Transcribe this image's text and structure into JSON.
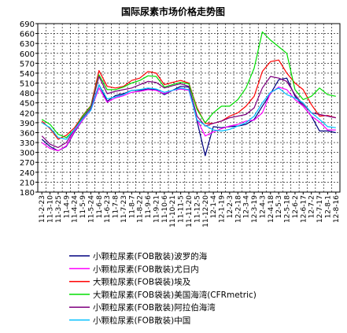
{
  "chart_data": {
    "type": "line",
    "title": "国际尿素市场价格走势图",
    "xlabel": "",
    "ylabel": "",
    "ylim": [
      180,
      690
    ],
    "yticks": [
      180,
      210,
      240,
      270,
      300,
      330,
      360,
      390,
      420,
      450,
      480,
      510,
      540,
      570,
      600,
      630,
      660,
      690
    ],
    "grid": true,
    "legend_position": "bottom",
    "x": [
      "11-2-23",
      "11-3-10",
      "11-3-25",
      "11-4-9",
      "11-4-24",
      "11-5-9",
      "11-5-24",
      "11-6-8",
      "11-6-23",
      "11-7-8",
      "11-7-23",
      "11-8-7",
      "11-8-22",
      "11-9-6",
      "11-9-21",
      "11-10-6",
      "11-10-21",
      "11-11-5",
      "11-11-20",
      "11-12-5",
      "11-12-20",
      "12-1-4",
      "12-1-19",
      "12-2-3",
      "12-2-18",
      "12-3-4",
      "12-3-19",
      "12-4-3",
      "12-4-18",
      "12-5-3",
      "12-5-18",
      "12-6-2",
      "12-6-17",
      "12-7-2",
      "12-7-17",
      "12-8-1",
      "12-8-16"
    ],
    "series": [
      {
        "name": "小颗粒尿素(FOB散装)波罗的海",
        "color": "#000080",
        "values": [
          340,
          318,
          305,
          318,
          362,
          398,
          430,
          505,
          455,
          472,
          478,
          488,
          488,
          492,
          490,
          475,
          488,
          500,
          498,
          395,
          290,
          378,
          375,
          378,
          380,
          385,
          400,
          440,
          478,
          520,
          525,
          470,
          440,
          410,
          365,
          365,
          360
        ]
      },
      {
        "name": "小颗粒尿素(FOB散装)尤日内",
        "color": "#ff00ff",
        "values": [
          330,
          312,
          305,
          320,
          365,
          398,
          428,
          495,
          452,
          465,
          472,
          482,
          485,
          490,
          488,
          478,
          488,
          492,
          488,
          400,
          350,
          362,
          372,
          380,
          385,
          395,
          398,
          420,
          480,
          498,
          490,
          460,
          440,
          410,
          392,
          368,
          368
        ]
      },
      {
        "name": "大颗粒尿素(FOB袋装)埃及",
        "color": "#ff0000",
        "values": [
          395,
          372,
          340,
          352,
          375,
          412,
          442,
          548,
          500,
          495,
          500,
          518,
          525,
          545,
          540,
          505,
          512,
          518,
          510,
          435,
          388,
          388,
          395,
          410,
          420,
          440,
          470,
          545,
          575,
          580,
          540,
          510,
          490,
          445,
          410,
          412,
          405
        ]
      },
      {
        "name": "大颗粒尿素(FOB袋装)美国海湾(CFRmetric)",
        "color": "#00dd00",
        "values": [
          400,
          385,
          355,
          345,
          370,
          410,
          440,
          535,
          490,
          490,
          498,
          510,
          518,
          532,
          530,
          498,
          505,
          512,
          508,
          430,
          390,
          420,
          440,
          440,
          460,
          495,
          555,
          665,
          640,
          620,
          600,
          490,
          460,
          470,
          495,
          475,
          470
        ]
      },
      {
        "name": "小颗粒尿素(FOB散装)阿拉伯海湾",
        "color": "#800080",
        "values": [
          350,
          325,
          315,
          330,
          370,
          405,
          435,
          530,
          478,
          485,
          490,
          495,
          505,
          515,
          512,
          495,
          502,
          508,
          500,
          410,
          380,
          388,
          395,
          405,
          410,
          415,
          435,
          495,
          530,
          525,
          515,
          475,
          445,
          420,
          415,
          410,
          405
        ]
      },
      {
        "name": "小颗粒尿素(FOB散装)中国",
        "color": "#00bfff",
        "values": [
          390,
          375,
          345,
          340,
          370,
          402,
          428,
          505,
          462,
          468,
          475,
          488,
          490,
          495,
          492,
          482,
          488,
          495,
          490,
          398,
          382,
          368,
          365,
          370,
          380,
          390,
          410,
          450,
          482,
          495,
          475,
          465,
          450,
          420,
          400,
          378,
          375
        ]
      }
    ]
  }
}
